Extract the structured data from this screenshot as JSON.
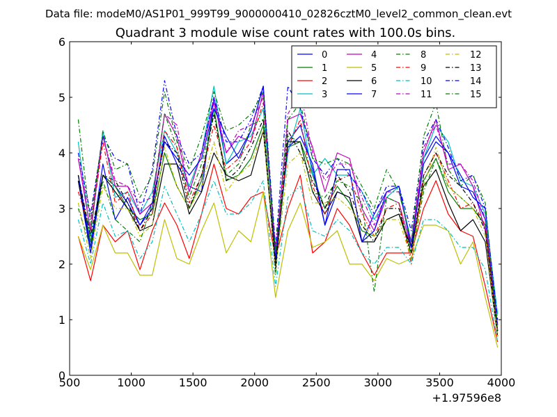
{
  "suptitle": "Data file: modeM0/AS1P01_999T99_9000000410_02826cztM0_level2_common_clean.evt",
  "chart_data": {
    "type": "line",
    "title": "Quadrant 3 module wise count rates with 100.0s bins.",
    "xlabel": "",
    "ylabel": "",
    "x_offset_label": "+1.97596e8",
    "xlim": [
      500,
      4000
    ],
    "ylim": [
      0,
      6
    ],
    "xticks": [
      500,
      1000,
      1500,
      2000,
      2500,
      3000,
      3500,
      4000
    ],
    "yticks": [
      0,
      1,
      2,
      3,
      4,
      5,
      6
    ],
    "grid": false,
    "legend_placement": "top-right",
    "x": [
      570,
      670,
      770,
      870,
      970,
      1070,
      1170,
      1270,
      1370,
      1470,
      1570,
      1670,
      1770,
      1870,
      1970,
      2070,
      2170,
      2270,
      2370,
      2470,
      2570,
      2670,
      2770,
      2870,
      2970,
      3070,
      3170,
      3270,
      3370,
      3470,
      3570,
      3670,
      3770,
      3870,
      3970
    ],
    "series": [
      {
        "name": "0",
        "color": "#0000ff",
        "dash": "solid",
        "values": [
          3.5,
          2.2,
          3.6,
          3.4,
          3.1,
          2.7,
          3.0,
          4.3,
          3.8,
          3.4,
          3.3,
          5.0,
          3.8,
          4.0,
          4.4,
          5.2,
          2.0,
          4.2,
          4.5,
          3.7,
          2.7,
          3.3,
          3.2,
          2.4,
          2.9,
          3.3,
          3.4,
          2.3,
          3.9,
          4.3,
          4.0,
          3.6,
          3.2,
          3.0,
          0.9
        ]
      },
      {
        "name": "1",
        "color": "#008000",
        "dash": "solid",
        "values": [
          3.6,
          2.4,
          3.6,
          3.4,
          3.0,
          2.8,
          2.9,
          4.0,
          3.4,
          3.0,
          3.5,
          4.8,
          3.5,
          3.6,
          3.9,
          4.5,
          2.0,
          4.1,
          4.2,
          3.6,
          3.0,
          3.4,
          3.1,
          2.6,
          2.5,
          2.8,
          2.9,
          2.2,
          3.5,
          3.9,
          3.3,
          3.0,
          3.0,
          2.7,
          0.7
        ]
      },
      {
        "name": "2",
        "color": "#ff0000",
        "dash": "solid",
        "values": [
          2.5,
          1.7,
          2.7,
          2.4,
          2.6,
          1.9,
          2.6,
          3.1,
          2.7,
          2.1,
          2.9,
          3.8,
          3.0,
          2.9,
          3.2,
          3.3,
          2.1,
          3.0,
          3.6,
          2.2,
          2.4,
          3.0,
          2.7,
          2.2,
          1.8,
          2.2,
          2.2,
          2.2,
          3.0,
          3.5,
          2.9,
          2.6,
          2.5,
          1.6,
          0.6
        ]
      },
      {
        "name": "3",
        "color": "#00bfbf",
        "dash": "solid",
        "values": [
          4.2,
          2.5,
          4.4,
          3.2,
          3.3,
          2.9,
          3.3,
          4.4,
          4.0,
          3.4,
          4.0,
          5.2,
          3.8,
          4.2,
          4.3,
          4.8,
          2.2,
          4.0,
          4.8,
          3.6,
          3.9,
          3.6,
          3.6,
          3.3,
          2.8,
          3.2,
          3.4,
          2.4,
          3.9,
          4.5,
          4.2,
          3.5,
          3.4,
          2.9,
          1.1
        ]
      },
      {
        "name": "4",
        "color": "#bf00bf",
        "dash": "solid",
        "values": [
          3.9,
          2.6,
          4.3,
          3.4,
          3.4,
          2.9,
          3.1,
          4.7,
          4.3,
          3.3,
          4.0,
          4.9,
          4.0,
          4.3,
          4.2,
          5.1,
          2.1,
          4.6,
          4.7,
          4.1,
          3.3,
          4.0,
          3.9,
          3.0,
          2.6,
          3.2,
          3.1,
          2.3,
          4.0,
          4.6,
          3.7,
          3.8,
          3.4,
          2.6,
          0.8
        ]
      },
      {
        "name": "5",
        "color": "#bfbf00",
        "dash": "solid",
        "values": [
          2.5,
          1.9,
          2.7,
          2.2,
          2.2,
          1.8,
          1.8,
          2.8,
          2.1,
          2.0,
          2.6,
          3.1,
          2.2,
          2.6,
          2.4,
          3.3,
          1.4,
          2.6,
          3.1,
          2.3,
          2.4,
          2.6,
          2.0,
          2.0,
          1.7,
          2.1,
          2.0,
          2.1,
          2.7,
          2.7,
          2.6,
          2.0,
          2.4,
          1.4,
          0.5
        ]
      },
      {
        "name": "6",
        "color": "#000000",
        "dash": "solid",
        "values": [
          3.5,
          2.3,
          3.6,
          3.3,
          3.0,
          2.6,
          2.7,
          3.8,
          3.8,
          2.9,
          3.3,
          4.0,
          3.6,
          3.5,
          3.6,
          4.4,
          2.0,
          4.2,
          4.2,
          3.3,
          2.9,
          3.3,
          3.2,
          2.4,
          2.4,
          2.8,
          2.9,
          2.3,
          3.4,
          3.7,
          3.1,
          2.6,
          2.8,
          2.4,
          0.7
        ]
      },
      {
        "name": "7",
        "color": "#0000ff",
        "dash": "solid",
        "values": [
          3.6,
          2.3,
          3.8,
          2.8,
          3.2,
          2.7,
          3.1,
          4.2,
          3.9,
          3.6,
          3.9,
          4.8,
          4.3,
          3.9,
          4.4,
          5.2,
          2.1,
          4.1,
          4.3,
          3.8,
          2.7,
          3.7,
          3.7,
          2.4,
          2.6,
          3.3,
          3.4,
          2.3,
          3.8,
          4.2,
          4.0,
          3.4,
          3.3,
          2.8,
          0.8
        ]
      },
      {
        "name": "8",
        "color": "#008000",
        "dash": "dashdot",
        "values": [
          3.0,
          2.3,
          3.5,
          2.8,
          2.6,
          2.4,
          3.1,
          4.7,
          4.1,
          3.2,
          3.8,
          4.7,
          3.6,
          3.8,
          4.5,
          4.6,
          1.8,
          4.3,
          4.2,
          3.3,
          3.2,
          3.5,
          3.4,
          3.1,
          1.5,
          3.2,
          3.1,
          2.1,
          3.3,
          3.9,
          3.4,
          3.2,
          3.0,
          2.7,
          0.7
        ]
      },
      {
        "name": "9",
        "color": "#ff0000",
        "dash": "dashdot",
        "values": [
          3.3,
          2.6,
          4.2,
          3.1,
          3.3,
          2.6,
          2.9,
          4.4,
          4.1,
          3.1,
          3.6,
          4.5,
          3.7,
          3.9,
          4.2,
          4.9,
          2.3,
          4.1,
          4.6,
          3.4,
          2.9,
          3.5,
          3.6,
          2.9,
          2.5,
          3.0,
          3.1,
          2.0,
          3.6,
          4.0,
          3.5,
          3.0,
          3.1,
          2.7,
          0.8
        ]
      },
      {
        "name": "10",
        "color": "#00bfbf",
        "dash": "dashdot",
        "values": [
          2.8,
          2.0,
          3.1,
          2.5,
          2.6,
          2.1,
          2.4,
          3.4,
          2.9,
          2.4,
          2.9,
          3.5,
          2.9,
          2.9,
          3.1,
          3.5,
          1.6,
          3.2,
          3.4,
          2.6,
          2.5,
          2.8,
          2.6,
          2.2,
          2.0,
          2.3,
          2.3,
          2.0,
          2.8,
          2.8,
          2.6,
          2.3,
          2.3,
          1.9,
          0.6
        ]
      },
      {
        "name": "11",
        "color": "#bf00bf",
        "dash": "dashdot",
        "values": [
          3.9,
          2.8,
          4.3,
          3.5,
          3.4,
          3.1,
          3.2,
          4.7,
          4.5,
          3.3,
          4.0,
          5.0,
          4.0,
          4.4,
          4.5,
          5.0,
          2.2,
          4.7,
          5.1,
          4.0,
          3.5,
          3.8,
          3.8,
          3.2,
          2.7,
          3.3,
          3.3,
          2.4,
          4.1,
          4.5,
          3.8,
          3.8,
          3.5,
          2.8,
          0.9
        ]
      },
      {
        "name": "12",
        "color": "#bfbf00",
        "dash": "dashdot",
        "values": [
          3.1,
          2.1,
          3.4,
          3.0,
          3.0,
          2.5,
          2.7,
          4.1,
          3.4,
          3.0,
          3.4,
          4.2,
          3.3,
          3.6,
          3.8,
          4.4,
          1.9,
          3.8,
          4.0,
          3.1,
          3.1,
          3.2,
          3.0,
          2.7,
          2.5,
          2.8,
          2.8,
          2.1,
          3.4,
          4.1,
          3.4,
          3.2,
          3.0,
          2.5,
          0.7
        ]
      },
      {
        "name": "13",
        "color": "#000000",
        "dash": "dashdot",
        "values": [
          3.6,
          2.5,
          3.6,
          3.5,
          3.1,
          2.6,
          3.0,
          4.2,
          4.0,
          3.0,
          3.6,
          4.7,
          3.5,
          3.7,
          4.1,
          4.6,
          1.9,
          4.4,
          4.0,
          3.5,
          3.0,
          3.6,
          3.3,
          2.7,
          2.4,
          3.0,
          3.0,
          2.2,
          3.6,
          4.0,
          3.6,
          3.4,
          3.1,
          2.6,
          0.8
        ]
      },
      {
        "name": "14",
        "color": "#0000ff",
        "dash": "dashdot",
        "values": [
          4.0,
          2.9,
          4.3,
          3.9,
          3.8,
          2.9,
          3.7,
          5.3,
          4.3,
          3.8,
          4.0,
          5.0,
          4.2,
          4.2,
          4.6,
          5.2,
          2.3,
          5.2,
          4.8,
          3.9,
          3.6,
          3.9,
          3.6,
          3.3,
          2.9,
          3.4,
          3.4,
          2.6,
          4.2,
          4.6,
          4.1,
          3.5,
          3.6,
          3.0,
          1.0
        ]
      },
      {
        "name": "15",
        "color": "#008000",
        "dash": "dashdot",
        "values": [
          4.6,
          2.7,
          4.4,
          3.7,
          3.8,
          3.2,
          3.6,
          5.1,
          4.2,
          3.7,
          4.3,
          5.1,
          4.4,
          4.5,
          4.7,
          5.1,
          2.2,
          4.6,
          4.9,
          3.9,
          3.8,
          3.9,
          3.8,
          3.4,
          3.0,
          3.7,
          3.3,
          2.4,
          4.3,
          4.9,
          3.7,
          3.4,
          3.6,
          3.1,
          0.8
        ]
      }
    ]
  }
}
